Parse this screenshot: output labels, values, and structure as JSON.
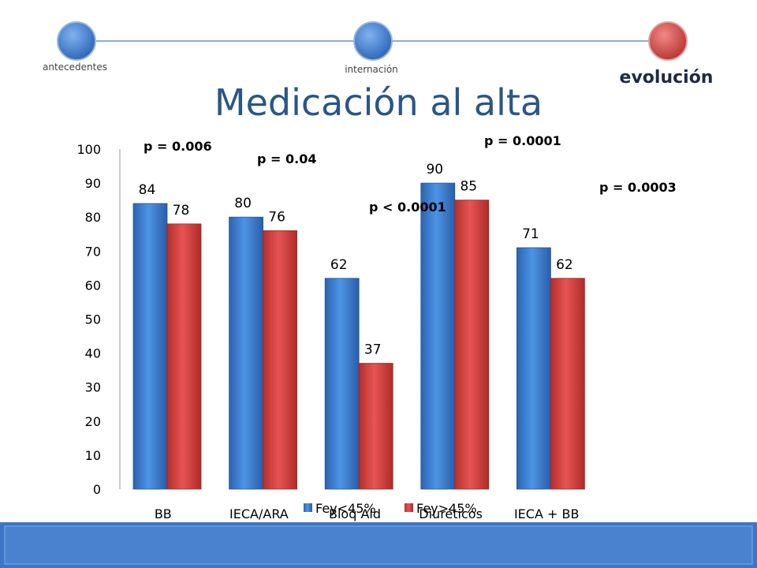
{
  "nav": {
    "steps": [
      {
        "label": "antecedentes",
        "active": false
      },
      {
        "label": "internación",
        "active": false
      },
      {
        "label": "evolución",
        "active": true
      }
    ]
  },
  "colors": {
    "series_1": "#3a7fd5",
    "series_2": "#d8413f",
    "nav_inactive": "#3a7fd5",
    "nav_active": "#d8413f",
    "footer": "#3d76c6"
  },
  "chart_data": {
    "type": "bar",
    "title": "Medicación al alta",
    "categories": [
      "BB",
      "IECA/ARA",
      "Bloq Ald",
      "Diuréticos",
      "IECA + BB"
    ],
    "series": [
      {
        "name": "Fey<45%",
        "values": [
          84,
          80,
          62,
          90,
          71
        ]
      },
      {
        "name": "Fey>45%",
        "values": [
          78,
          76,
          37,
          85,
          62
        ]
      }
    ],
    "ylim": [
      0,
      100
    ],
    "yticks": [
      0,
      10,
      20,
      30,
      40,
      50,
      60,
      70,
      80,
      90,
      100
    ],
    "grid": false,
    "legend": "bottom",
    "annotations": [
      "p = 0.006",
      "p = 0.04",
      "p < 0.0001",
      "p = 0.0001",
      "p = 0.0003"
    ]
  }
}
